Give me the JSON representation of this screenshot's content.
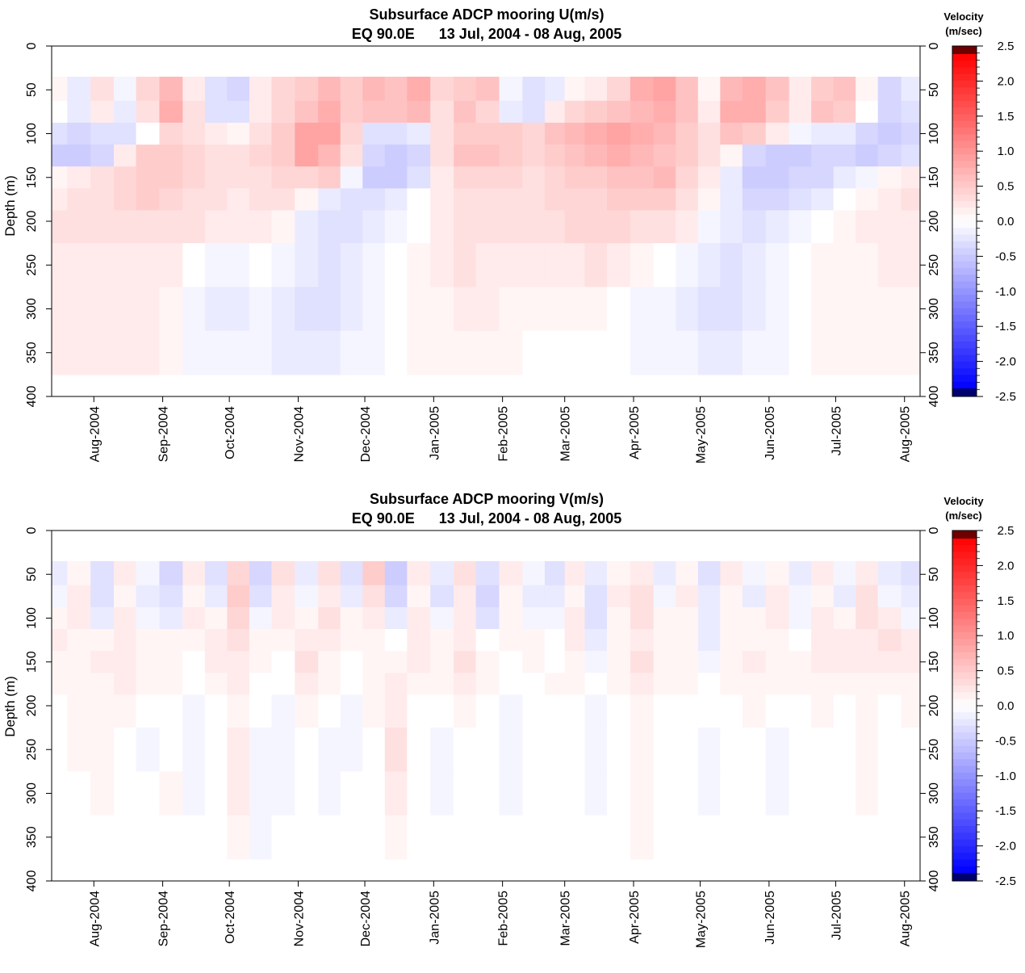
{
  "colorbar": {
    "title_line1": "Velocity",
    "title_line2": "(m/sec)",
    "ticks": [
      "2.5",
      "2.0",
      "1.5",
      "1.0",
      "0.5",
      "0.0",
      "-0.5",
      "-1.0",
      "-1.5",
      "-2.0",
      "-2.5"
    ],
    "range": [
      -2.5,
      2.5
    ],
    "colors": {
      "negative_max": "#0000ff",
      "zero": "#ffffff",
      "positive_max": "#ff0000",
      "neg_extreme": "#00006e",
      "pos_extreme": "#6e0000"
    }
  },
  "chart_data": [
    {
      "type": "heatmap",
      "title_line1": "Subsurface ADCP mooring U(m/s)",
      "title_line2": "EQ 90.0E      13 Jul, 2004 - 08 Aug, 2005",
      "ylabel": "Depth (m)",
      "ylim": [
        0,
        400
      ],
      "yticks": [
        "0",
        "50",
        "100",
        "150",
        "200",
        "250",
        "300",
        "350",
        "400"
      ],
      "xlim": [
        "2004-07-13",
        "2005-08-08"
      ],
      "xtick_labels": [
        "Aug-2004",
        "Sep-2004",
        "Oct-2004",
        "Nov-2004",
        "Dec-2004",
        "Jan-2005",
        "Feb-2005",
        "Mar-2005",
        "Apr-2005",
        "May-2005",
        "Jun-2005",
        "Jul-2005",
        "Aug-2005"
      ],
      "xtick_dates": [
        "2004-08-01",
        "2004-09-01",
        "2004-10-01",
        "2004-11-01",
        "2004-12-01",
        "2005-01-01",
        "2005-02-01",
        "2005-03-01",
        "2005-04-01",
        "2005-05-01",
        "2005-06-01",
        "2005-07-01",
        "2005-08-01"
      ],
      "data_depth_range": [
        35,
        375
      ],
      "depths": [
        50,
        75,
        100,
        125,
        150,
        175,
        200,
        250,
        300,
        350
      ],
      "dates": [
        "2004-07-15",
        "2004-07-25",
        "2004-08-05",
        "2004-08-15",
        "2004-08-25",
        "2004-09-05",
        "2004-09-15",
        "2004-09-25",
        "2004-10-05",
        "2004-10-15",
        "2004-10-25",
        "2004-11-05",
        "2004-11-15",
        "2004-11-25",
        "2004-12-05",
        "2004-12-15",
        "2004-12-25",
        "2005-01-05",
        "2005-01-15",
        "2005-01-25",
        "2005-02-05",
        "2005-02-15",
        "2005-02-25",
        "2005-03-05",
        "2005-03-15",
        "2005-03-25",
        "2005-04-05",
        "2005-04-15",
        "2005-04-25",
        "2005-05-05",
        "2005-05-15",
        "2005-05-25",
        "2005-06-05",
        "2005-06-15",
        "2005-06-25",
        "2005-07-05",
        "2005-07-15",
        "2005-07-25",
        "2005-08-05"
      ],
      "values": [
        [
          0.1,
          -0.2,
          0.3,
          -0.1,
          0.4,
          0.7,
          0.2,
          -0.3,
          -0.4,
          0.2,
          0.4,
          0.5,
          0.7,
          0.5,
          0.7,
          0.6,
          0.8,
          0.4,
          0.5,
          0.6,
          -0.1,
          -0.3,
          -0.2,
          0.1,
          0.2,
          0.4,
          0.8,
          0.9,
          0.6,
          0.1,
          0.7,
          0.8,
          0.6,
          0.2,
          0.5,
          0.6,
          0.1,
          -0.4,
          -0.2
        ],
        [
          0.0,
          -0.2,
          0.2,
          -0.2,
          0.3,
          0.8,
          0.3,
          -0.3,
          -0.3,
          0.2,
          0.4,
          0.6,
          0.8,
          0.5,
          0.6,
          0.6,
          0.7,
          0.3,
          0.6,
          0.4,
          -0.2,
          -0.3,
          0.2,
          0.4,
          0.5,
          0.6,
          0.7,
          0.8,
          0.6,
          0.2,
          0.8,
          0.8,
          0.5,
          0.2,
          0.6,
          0.5,
          0.0,
          -0.4,
          -0.3
        ],
        [
          -0.3,
          -0.4,
          -0.3,
          -0.3,
          0.0,
          0.4,
          0.3,
          0.2,
          0.1,
          0.3,
          0.5,
          0.9,
          0.9,
          0.4,
          -0.3,
          -0.3,
          -0.2,
          0.3,
          0.5,
          0.5,
          0.5,
          0.4,
          0.6,
          0.7,
          0.8,
          0.9,
          0.8,
          0.7,
          0.5,
          0.3,
          0.6,
          0.5,
          0.2,
          -0.1,
          -0.2,
          -0.2,
          -0.4,
          -0.5,
          -0.4
        ],
        [
          -0.5,
          -0.5,
          -0.4,
          0.2,
          0.5,
          0.5,
          0.4,
          0.3,
          0.3,
          0.4,
          0.5,
          0.9,
          0.7,
          0.3,
          -0.4,
          -0.5,
          -0.4,
          0.3,
          0.6,
          0.6,
          0.5,
          0.4,
          0.5,
          0.6,
          0.7,
          0.8,
          0.7,
          0.6,
          0.5,
          0.3,
          0.1,
          -0.4,
          -0.5,
          -0.5,
          -0.4,
          -0.4,
          -0.5,
          -0.4,
          -0.3
        ],
        [
          0.1,
          0.2,
          0.3,
          0.4,
          0.5,
          0.5,
          0.4,
          0.3,
          0.3,
          0.3,
          0.4,
          0.4,
          0.5,
          -0.1,
          -0.5,
          -0.5,
          -0.3,
          0.2,
          0.4,
          0.4,
          0.4,
          0.3,
          0.4,
          0.5,
          0.5,
          0.6,
          0.6,
          0.7,
          0.4,
          0.2,
          -0.2,
          -0.5,
          -0.5,
          -0.4,
          -0.4,
          -0.2,
          -0.1,
          0.1,
          0.2
        ],
        [
          0.2,
          0.3,
          0.3,
          0.4,
          0.5,
          0.4,
          0.3,
          0.3,
          0.2,
          0.3,
          0.3,
          0.1,
          -0.2,
          -0.3,
          -0.3,
          -0.2,
          0.0,
          0.2,
          0.3,
          0.3,
          0.3,
          0.3,
          0.4,
          0.4,
          0.4,
          0.5,
          0.5,
          0.5,
          0.3,
          0.1,
          -0.2,
          -0.4,
          -0.4,
          -0.3,
          -0.2,
          0.0,
          0.1,
          0.2,
          0.3
        ],
        [
          0.3,
          0.3,
          0.3,
          0.3,
          0.3,
          0.3,
          0.3,
          0.2,
          0.2,
          0.2,
          0.1,
          -0.2,
          -0.3,
          -0.3,
          -0.2,
          -0.1,
          0.0,
          0.2,
          0.3,
          0.3,
          0.3,
          0.3,
          0.3,
          0.4,
          0.4,
          0.4,
          0.3,
          0.3,
          0.2,
          -0.1,
          -0.2,
          -0.3,
          -0.2,
          -0.1,
          0.0,
          0.1,
          0.2,
          0.2,
          0.2
        ],
        [
          0.2,
          0.2,
          0.2,
          0.2,
          0.2,
          0.2,
          0.0,
          -0.1,
          -0.1,
          0.0,
          -0.1,
          -0.2,
          -0.3,
          -0.2,
          -0.1,
          0.0,
          0.1,
          0.2,
          0.3,
          0.2,
          0.2,
          0.2,
          0.2,
          0.2,
          0.3,
          0.2,
          0.1,
          0.0,
          -0.1,
          -0.2,
          -0.3,
          -0.2,
          -0.1,
          0.0,
          0.1,
          0.1,
          0.1,
          0.2,
          0.2
        ],
        [
          0.2,
          0.2,
          0.2,
          0.2,
          0.2,
          0.1,
          -0.1,
          -0.2,
          -0.2,
          -0.1,
          -0.2,
          -0.3,
          -0.3,
          -0.2,
          -0.1,
          0.0,
          0.1,
          0.1,
          0.2,
          0.2,
          0.1,
          0.1,
          0.1,
          0.1,
          0.1,
          0.0,
          -0.1,
          -0.1,
          -0.2,
          -0.3,
          -0.3,
          -0.2,
          -0.1,
          0.0,
          0.1,
          0.1,
          0.1,
          0.1,
          0.1
        ],
        [
          0.2,
          0.2,
          0.2,
          0.2,
          0.2,
          0.1,
          -0.1,
          -0.1,
          -0.1,
          -0.1,
          -0.2,
          -0.2,
          -0.2,
          -0.1,
          -0.1,
          0.0,
          0.1,
          0.1,
          0.1,
          0.1,
          0.1,
          0.0,
          0.0,
          0.0,
          0.0,
          0.0,
          -0.1,
          -0.1,
          -0.1,
          -0.2,
          -0.2,
          -0.1,
          -0.1,
          0.0,
          0.1,
          0.1,
          0.1,
          0.1,
          0.1
        ]
      ]
    },
    {
      "type": "heatmap",
      "title_line1": "Subsurface ADCP mooring V(m/s)",
      "title_line2": "EQ 90.0E      13 Jul, 2004 - 08 Aug, 2005",
      "ylabel": "Depth (m)",
      "ylim": [
        0,
        400
      ],
      "yticks": [
        "0",
        "50",
        "100",
        "150",
        "200",
        "250",
        "300",
        "350",
        "400"
      ],
      "xlim": [
        "2004-07-13",
        "2005-08-08"
      ],
      "xtick_labels": [
        "Aug-2004",
        "Sep-2004",
        "Oct-2004",
        "Nov-2004",
        "Dec-2004",
        "Jan-2005",
        "Feb-2005",
        "Mar-2005",
        "Apr-2005",
        "May-2005",
        "Jun-2005",
        "Jul-2005",
        "Aug-2005"
      ],
      "xtick_dates": [
        "2004-08-01",
        "2004-09-01",
        "2004-10-01",
        "2004-11-01",
        "2004-12-01",
        "2005-01-01",
        "2005-02-01",
        "2005-03-01",
        "2005-04-01",
        "2005-05-01",
        "2005-06-01",
        "2005-07-01",
        "2005-08-01"
      ],
      "data_depth_range": [
        35,
        375
      ],
      "depths": [
        50,
        75,
        100,
        125,
        150,
        175,
        200,
        250,
        300,
        350
      ],
      "dates": [
        "2004-07-15",
        "2004-07-25",
        "2004-08-05",
        "2004-08-15",
        "2004-08-25",
        "2004-09-05",
        "2004-09-15",
        "2004-09-25",
        "2004-10-05",
        "2004-10-15",
        "2004-10-25",
        "2004-11-05",
        "2004-11-15",
        "2004-11-25",
        "2004-12-05",
        "2004-12-15",
        "2004-12-25",
        "2005-01-05",
        "2005-01-15",
        "2005-01-25",
        "2005-02-05",
        "2005-02-15",
        "2005-02-25",
        "2005-03-05",
        "2005-03-15",
        "2005-03-25",
        "2005-04-05",
        "2005-04-15",
        "2005-04-25",
        "2005-05-05",
        "2005-05-15",
        "2005-05-25",
        "2005-06-05",
        "2005-06-15",
        "2005-06-25",
        "2005-07-05",
        "2005-07-15",
        "2005-07-25",
        "2005-08-05"
      ],
      "values": [
        [
          -0.2,
          0.1,
          -0.3,
          0.2,
          -0.1,
          -0.4,
          0.2,
          -0.3,
          0.4,
          -0.4,
          0.3,
          -0.2,
          0.3,
          -0.3,
          0.5,
          -0.5,
          0.2,
          -0.2,
          0.3,
          -0.3,
          0.2,
          -0.1,
          -0.3,
          0.2,
          -0.2,
          0.1,
          0.2,
          -0.2,
          0.1,
          -0.3,
          0.2,
          -0.1,
          0.1,
          -0.2,
          0.2,
          -0.1,
          0.2,
          -0.2,
          -0.3
        ],
        [
          -0.1,
          0.2,
          -0.3,
          0.1,
          -0.2,
          -0.3,
          0.1,
          -0.2,
          0.5,
          -0.3,
          0.2,
          -0.1,
          0.2,
          -0.2,
          0.3,
          -0.4,
          0.1,
          -0.3,
          0.2,
          -0.4,
          0.1,
          -0.2,
          -0.2,
          0.1,
          -0.3,
          0.2,
          0.3,
          -0.1,
          0.2,
          -0.2,
          0.1,
          -0.2,
          0.2,
          -0.1,
          0.1,
          -0.2,
          0.3,
          -0.1,
          -0.2
        ],
        [
          0.1,
          0.2,
          -0.2,
          0.2,
          -0.1,
          -0.2,
          0.2,
          0.1,
          0.4,
          -0.1,
          0.2,
          0.1,
          0.3,
          0.1,
          0.2,
          -0.2,
          0.2,
          -0.1,
          0.2,
          -0.3,
          0.1,
          -0.1,
          -0.1,
          0.2,
          -0.3,
          0.1,
          0.3,
          0.1,
          0.1,
          -0.2,
          0.1,
          0.1,
          0.2,
          -0.1,
          0.2,
          0.1,
          0.3,
          0.2,
          -0.1
        ],
        [
          0.2,
          0.1,
          0.1,
          0.2,
          0.1,
          0.1,
          0.1,
          0.2,
          0.3,
          0.1,
          0.1,
          0.2,
          0.2,
          0.1,
          0.1,
          0.0,
          0.2,
          0.1,
          0.2,
          0.0,
          0.1,
          0.1,
          0.0,
          0.2,
          -0.2,
          0.1,
          0.2,
          0.1,
          0.1,
          -0.2,
          0.1,
          0.1,
          0.1,
          0.0,
          0.2,
          0.2,
          0.2,
          0.3,
          0.2
        ],
        [
          0.1,
          0.1,
          0.2,
          0.2,
          0.1,
          0.1,
          0.0,
          0.2,
          0.2,
          0.1,
          0.0,
          0.3,
          0.1,
          0.0,
          0.1,
          0.1,
          0.2,
          0.1,
          0.3,
          0.1,
          0.0,
          0.1,
          0.0,
          0.1,
          -0.1,
          0.1,
          0.3,
          0.1,
          0.1,
          -0.1,
          0.1,
          0.2,
          0.1,
          0.1,
          0.2,
          0.2,
          0.2,
          0.2,
          0.2
        ],
        [
          0.1,
          0.1,
          0.1,
          0.2,
          0.1,
          0.1,
          0.0,
          0.1,
          0.2,
          0.0,
          0.0,
          0.2,
          0.1,
          0.0,
          0.1,
          0.2,
          0.1,
          0.1,
          0.2,
          0.1,
          0.0,
          0.0,
          0.1,
          0.1,
          0.0,
          0.1,
          0.2,
          0.1,
          0.1,
          0.0,
          0.1,
          0.1,
          0.1,
          0.1,
          0.1,
          0.1,
          0.1,
          0.1,
          0.1
        ],
        [
          0.0,
          0.1,
          0.1,
          0.1,
          0.0,
          0.0,
          -0.1,
          0.0,
          0.1,
          0.0,
          -0.1,
          0.1,
          0.0,
          -0.1,
          0.1,
          0.2,
          0.0,
          0.0,
          0.1,
          0.0,
          -0.1,
          0.0,
          0.0,
          0.0,
          -0.1,
          0.0,
          0.1,
          0.0,
          0.0,
          0.0,
          0.0,
          0.1,
          0.0,
          0.0,
          0.1,
          0.0,
          0.1,
          0.0,
          0.1
        ],
        [
          0.0,
          0.1,
          0.1,
          0.0,
          -0.1,
          0.0,
          -0.1,
          0.0,
          0.2,
          -0.1,
          -0.1,
          0.0,
          -0.1,
          -0.1,
          0.0,
          0.3,
          0.0,
          -0.1,
          0.0,
          0.0,
          -0.1,
          0.0,
          0.0,
          0.0,
          -0.1,
          0.0,
          0.1,
          0.0,
          0.0,
          -0.1,
          0.0,
          0.0,
          -0.1,
          0.0,
          0.0,
          0.0,
          0.1,
          0.0,
          0.0
        ],
        [
          0.0,
          0.0,
          0.1,
          0.0,
          0.0,
          0.1,
          -0.1,
          0.0,
          0.2,
          -0.1,
          -0.1,
          0.0,
          -0.1,
          0.0,
          0.0,
          0.2,
          0.0,
          -0.1,
          0.0,
          0.0,
          -0.1,
          0.0,
          0.0,
          0.0,
          -0.1,
          0.0,
          0.1,
          0.0,
          0.0,
          -0.1,
          0.0,
          0.0,
          -0.1,
          0.0,
          0.0,
          0.0,
          0.1,
          0.0,
          0.0
        ],
        [
          0.0,
          0.0,
          0.0,
          0.0,
          0.0,
          0.0,
          0.0,
          0.0,
          0.1,
          -0.1,
          0.0,
          0.0,
          0.0,
          0.0,
          0.0,
          0.1,
          0.0,
          0.0,
          0.0,
          0.0,
          0.0,
          0.0,
          0.0,
          0.0,
          0.0,
          0.0,
          0.1,
          0.0,
          0.0,
          0.0,
          0.0,
          0.0,
          0.0,
          0.0,
          0.0,
          0.0,
          0.0,
          0.0,
          0.0
        ]
      ]
    }
  ]
}
